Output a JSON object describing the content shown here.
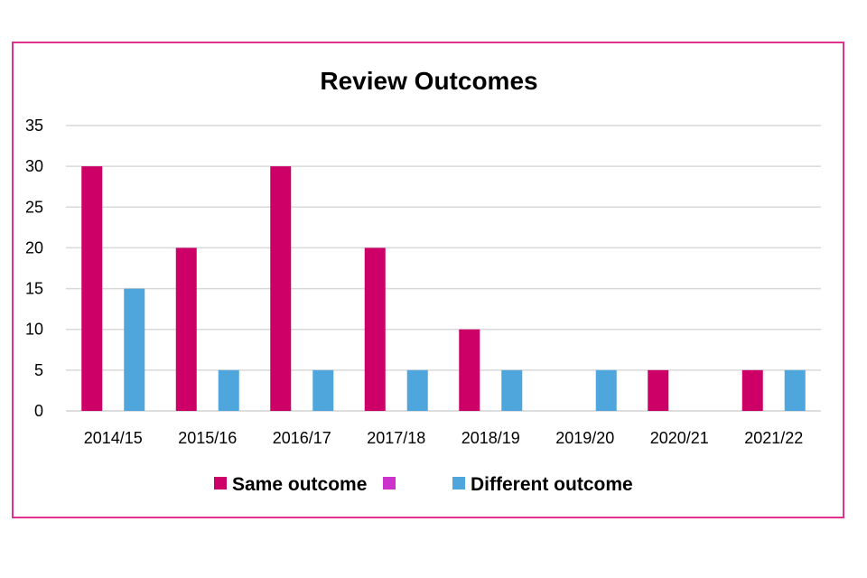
{
  "chart_data": {
    "type": "bar",
    "title": "Review Outcomes",
    "xlabel": "",
    "ylabel": "",
    "ylim": [
      0,
      35
    ],
    "yticks": [
      0,
      5,
      10,
      15,
      20,
      25,
      30,
      35
    ],
    "grid": true,
    "legend_position": "bottom",
    "categories": [
      "2014/15",
      "2015/16",
      "2016/17",
      "2017/18",
      "2018/19",
      "2019/20",
      "2020/21",
      "2021/22"
    ],
    "series": [
      {
        "name": "Same outcome",
        "color": "#cc0066",
        "values": [
          30,
          20,
          30,
          20,
          10,
          0,
          5,
          5
        ]
      },
      {
        "name": "",
        "color": "#cc33cc",
        "values": [
          0,
          0,
          0,
          0,
          0,
          0,
          0,
          0
        ]
      },
      {
        "name": "Different outcome",
        "color": "#4ea6dc",
        "values": [
          15,
          5,
          5,
          5,
          5,
          5,
          0,
          5
        ]
      }
    ]
  },
  "colors": {
    "frame_border": "#e0338a",
    "gridline": "#d9d9d9",
    "axis": "#d9d9d9"
  }
}
